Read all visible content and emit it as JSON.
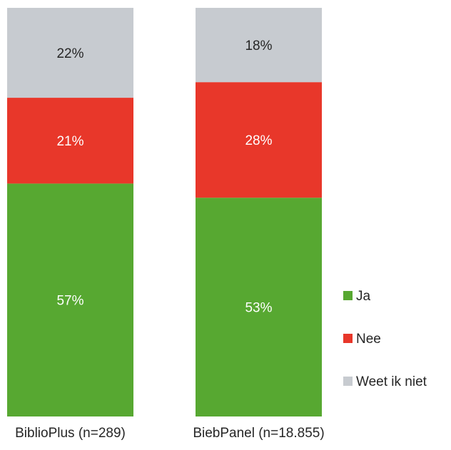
{
  "chart_data": {
    "type": "bar",
    "stacked": true,
    "percent_stacked": true,
    "categories": [
      "BiblioPlus (n=289)",
      "BiebPanel (n=18.855)"
    ],
    "series": [
      {
        "name": "Ja",
        "values": [
          57,
          53
        ],
        "labels": [
          "57%",
          "53%"
        ],
        "color": "#57A831",
        "label_color": "#ffffff"
      },
      {
        "name": "Nee",
        "values": [
          21,
          28
        ],
        "labels": [
          "21%",
          "28%"
        ],
        "color": "#E8372A",
        "label_color": "#ffffff"
      },
      {
        "name": "Weet ik niet",
        "values": [
          22,
          18
        ],
        "labels": [
          "22%",
          "18%"
        ],
        "color": "#C7CBD0",
        "label_color": "#262626"
      }
    ],
    "ylim": [
      0,
      100
    ],
    "grid": false,
    "legend": "right"
  }
}
